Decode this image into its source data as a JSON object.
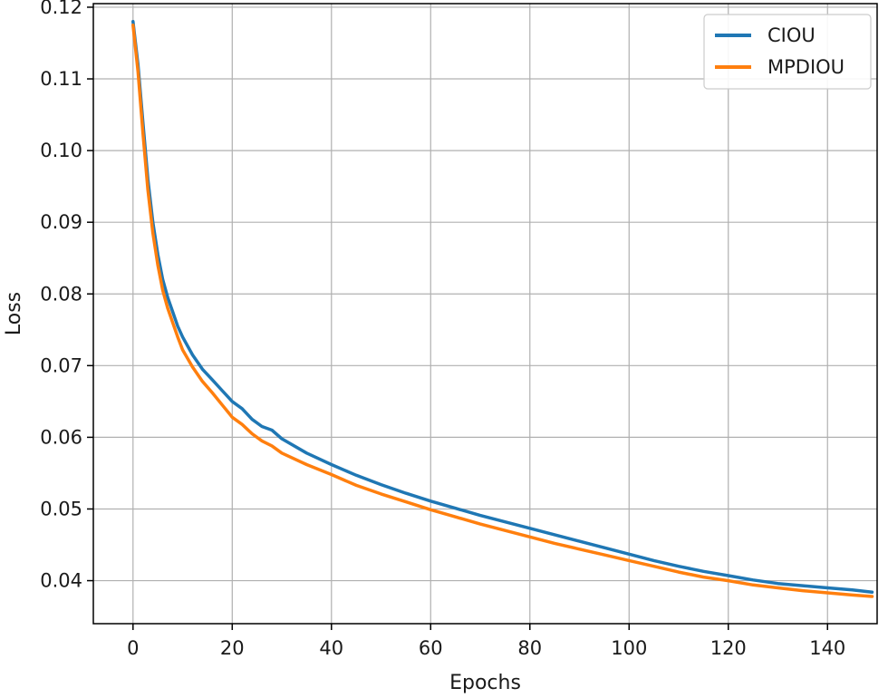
{
  "chart_data": {
    "type": "line",
    "title": "",
    "xlabel": "Epochs",
    "ylabel": "Loss",
    "xlim": [
      -8,
      150
    ],
    "ylim": [
      0.034,
      0.1205
    ],
    "xticks": [
      0,
      20,
      40,
      60,
      80,
      100,
      120,
      140
    ],
    "xtick_labels": [
      "0",
      "20",
      "40",
      "60",
      "80",
      "100",
      "120",
      "140"
    ],
    "yticks": [
      0.04,
      0.05,
      0.06,
      0.07,
      0.08,
      0.09,
      0.1,
      0.11,
      0.12
    ],
    "ytick_labels": [
      "0.04",
      "0.05",
      "0.06",
      "0.07",
      "0.08",
      "0.09",
      "0.10",
      "0.11",
      "0.12"
    ],
    "grid": true,
    "legend_position": "top-right",
    "series": [
      {
        "name": "CIOU",
        "color": "#1f77b4",
        "x": [
          0,
          1,
          2,
          3,
          4,
          5,
          6,
          7,
          8,
          9,
          10,
          12,
          14,
          16,
          18,
          20,
          22,
          24,
          26,
          28,
          30,
          35,
          40,
          45,
          50,
          55,
          60,
          65,
          70,
          75,
          80,
          85,
          90,
          95,
          100,
          105,
          110,
          115,
          120,
          125,
          130,
          135,
          140,
          145,
          149
        ],
        "y": [
          0.118,
          0.112,
          0.104,
          0.096,
          0.09,
          0.0855,
          0.082,
          0.0795,
          0.0775,
          0.0755,
          0.074,
          0.0715,
          0.0695,
          0.068,
          0.0665,
          0.065,
          0.064,
          0.0625,
          0.0615,
          0.061,
          0.0598,
          0.0578,
          0.0562,
          0.0547,
          0.0534,
          0.0522,
          0.0511,
          0.0501,
          0.0491,
          0.0482,
          0.0473,
          0.0464,
          0.0455,
          0.0446,
          0.0437,
          0.0428,
          0.042,
          0.0413,
          0.0407,
          0.0401,
          0.0396,
          0.0393,
          0.039,
          0.0387,
          0.0384
        ]
      },
      {
        "name": "MPDIOU",
        "color": "#ff7f0e",
        "x": [
          0,
          1,
          2,
          3,
          4,
          5,
          6,
          7,
          8,
          9,
          10,
          12,
          14,
          16,
          18,
          20,
          22,
          24,
          26,
          28,
          30,
          35,
          40,
          45,
          50,
          55,
          60,
          65,
          70,
          75,
          80,
          85,
          90,
          95,
          100,
          105,
          110,
          115,
          120,
          125,
          130,
          135,
          140,
          145,
          149
        ],
        "y": [
          0.1175,
          0.111,
          0.1025,
          0.0945,
          0.0885,
          0.084,
          0.0805,
          0.078,
          0.076,
          0.074,
          0.0722,
          0.0698,
          0.0678,
          0.0662,
          0.0645,
          0.0628,
          0.0618,
          0.0605,
          0.0595,
          0.0588,
          0.0578,
          0.0562,
          0.0548,
          0.0533,
          0.0521,
          0.051,
          0.0499,
          0.0489,
          0.0479,
          0.047,
          0.0461,
          0.0452,
          0.0444,
          0.0436,
          0.0428,
          0.042,
          0.0412,
          0.0405,
          0.04,
          0.0394,
          0.039,
          0.0386,
          0.0383,
          0.038,
          0.0378
        ]
      }
    ]
  }
}
